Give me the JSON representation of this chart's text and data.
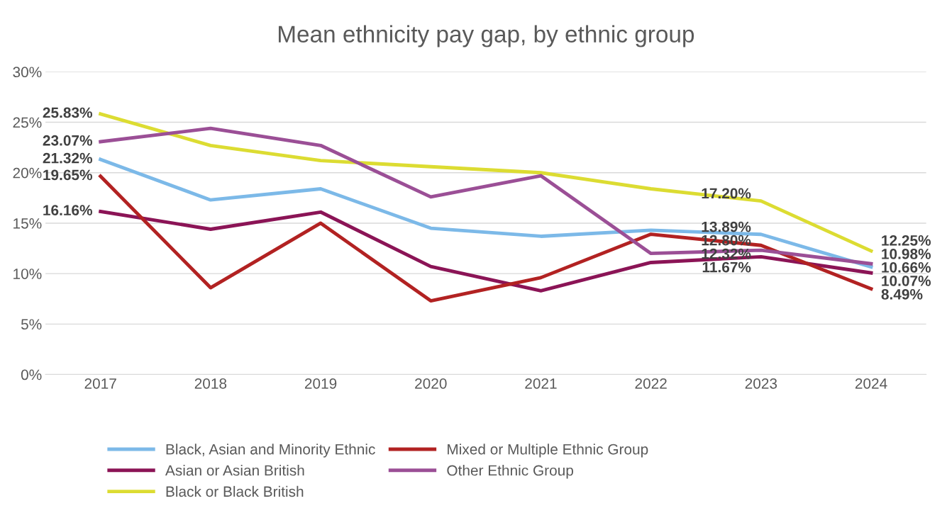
{
  "chart_data": {
    "type": "line",
    "title": "Mean ethnicity pay gap, by ethnic group",
    "categories": [
      "2017",
      "2018",
      "2019",
      "2020",
      "2021",
      "2022",
      "2023",
      "2024"
    ],
    "series": [
      {
        "name": "Black, Asian and Minority Ethnic",
        "color": "#7cb9e8",
        "values": [
          21.32,
          17.3,
          18.4,
          14.5,
          13.7,
          14.3,
          13.89,
          10.66
        ],
        "value_labels": [
          "21.32%",
          null,
          null,
          null,
          null,
          null,
          "13.89%",
          "10.66%"
        ]
      },
      {
        "name": "Asian or Asian British",
        "color": "#8b1456",
        "values": [
          16.16,
          14.4,
          16.1,
          10.7,
          8.3,
          11.1,
          11.67,
          10.07
        ],
        "value_labels": [
          "16.16%",
          null,
          null,
          null,
          null,
          null,
          "11.67%",
          "10.07%"
        ]
      },
      {
        "name": "Black or Black British",
        "color": "#dcdc32",
        "values": [
          25.83,
          22.7,
          21.2,
          20.6,
          20.0,
          18.4,
          17.2,
          12.25
        ],
        "value_labels": [
          "25.83%",
          null,
          null,
          null,
          null,
          null,
          "17.20%",
          "12.25%"
        ]
      },
      {
        "name": "Mixed or Multiple Ethnic Group",
        "color": "#b22222",
        "values": [
          19.65,
          8.6,
          15.0,
          7.3,
          9.6,
          13.9,
          12.8,
          8.49
        ],
        "value_labels": [
          "19.65%",
          null,
          null,
          null,
          null,
          null,
          "12.80%",
          "8.49%"
        ]
      },
      {
        "name": "Other Ethnic Group",
        "color": "#9b4f96",
        "values": [
          23.07,
          24.4,
          22.7,
          17.6,
          19.7,
          12.0,
          12.32,
          10.98
        ],
        "value_labels": [
          "23.07%",
          null,
          null,
          null,
          null,
          null,
          "12.32%",
          "10.98%"
        ]
      }
    ],
    "ylim": [
      0,
      30
    ],
    "yticks": [
      {
        "value": 0,
        "label": "0%"
      },
      {
        "value": 5,
        "label": "5%"
      },
      {
        "value": 10,
        "label": "10%"
      },
      {
        "value": 15,
        "label": "15%"
      },
      {
        "value": 20,
        "label": "20%"
      },
      {
        "value": 25,
        "label": "25%"
      },
      {
        "value": 30,
        "label": "30%"
      }
    ],
    "grid": "y",
    "legend": "bottom",
    "marker": "none",
    "line_style": "solid"
  }
}
